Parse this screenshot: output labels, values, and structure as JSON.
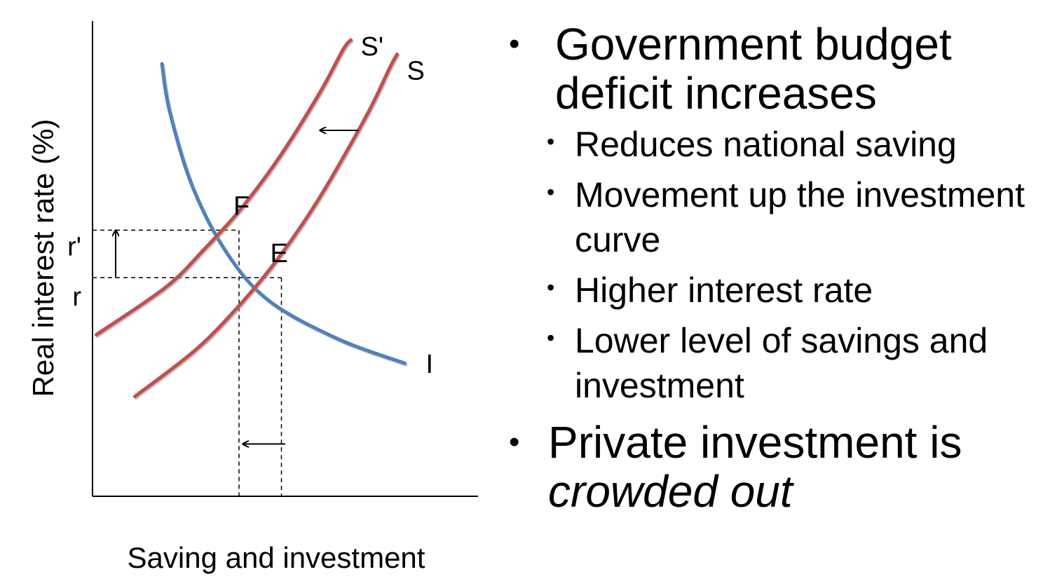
{
  "chart_data": {
    "type": "line",
    "title": "",
    "xlabel": "Saving and investment",
    "ylabel": "Real interest rate (%)",
    "xlim": [
      0,
      10
    ],
    "ylim": [
      0,
      10
    ],
    "colors": {
      "supply": "#c0504d",
      "investment": "#4f81bd"
    },
    "series": [
      {
        "name": "I",
        "role": "investment",
        "x": [
          1.8,
          2.0,
          2.6,
          3.5,
          4.6,
          6.4,
          8.1
        ],
        "y": [
          9.1,
          8.1,
          6.5,
          5.1,
          4.1,
          3.3,
          2.8
        ]
      },
      {
        "name": "S",
        "role": "supply",
        "x": [
          1.1,
          2.7,
          3.9,
          4.9,
          5.9,
          7.1,
          7.7,
          7.9
        ],
        "y": [
          2.1,
          3.1,
          4.1,
          5.1,
          6.3,
          8.0,
          9.0,
          9.3
        ]
      },
      {
        "name": "S'",
        "role": "supply",
        "x": [
          0.1,
          1.9,
          2.9,
          3.9,
          4.9,
          5.9,
          6.5,
          6.7
        ],
        "y": [
          3.4,
          4.4,
          5.2,
          6.1,
          7.2,
          8.5,
          9.4,
          9.6
        ]
      }
    ],
    "points": [
      {
        "label": "E",
        "x": 4.9,
        "y": 4.6
      },
      {
        "label": "F",
        "x": 3.8,
        "y": 5.6
      }
    ],
    "rates": [
      {
        "label": "r'",
        "y": 5.6
      },
      {
        "label": "r",
        "y": 4.6
      }
    ],
    "arrows": [
      {
        "from": [
          6.9,
          7.7
        ],
        "to": [
          5.9,
          7.7
        ]
      },
      {
        "from": [
          0.6,
          4.6
        ],
        "to": [
          0.6,
          5.6
        ]
      },
      {
        "from": [
          5.0,
          1.1
        ],
        "to": [
          3.9,
          1.1
        ]
      }
    ],
    "legend": "none",
    "grid": false
  },
  "bullets": {
    "b1": "Government budget deficit increases",
    "sub": [
      "Reduces national saving",
      "Movement up the investment curve",
      "Higher interest rate",
      "Lower level of savings and investment"
    ],
    "b2_pre": "Private investment is ",
    "b2_em": "crowded out",
    "bullet_glyph": "•"
  }
}
